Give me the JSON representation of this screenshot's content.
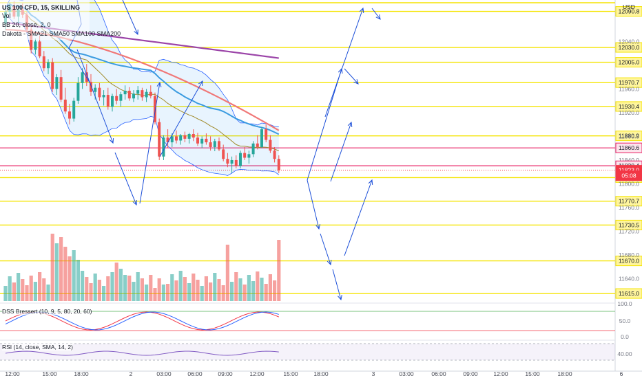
{
  "legend": {
    "symbol": "US 100 CFD, 15, SKILLING",
    "vol": "Vol",
    "bb": "BB 20, close, 2, 0",
    "sma": "Dakota - SMA21 SMA50 SMA100 SMA200"
  },
  "currency": "USD",
  "dss_label": "DSS Bressert (10, 9, 5, 80, 20, 60)",
  "rsi_label": "RSI (14, close, SMA, 14, 2)",
  "chart_data": {
    "type": "candlestick",
    "price_axis": {
      "unit": "USD",
      "ticks": [
        "12040.0",
        "11960.0",
        "11920.0",
        "11880.0",
        "11840.0",
        "11800.0",
        "11760.0",
        "11720.0",
        "11680.0",
        "11640.0"
      ],
      "range": [
        11600,
        12110
      ]
    },
    "time_axis_ticks": [
      "12:00",
      "15:00",
      "18:00",
      "2",
      "03:00",
      "06:00",
      "09:00",
      "12:00",
      "15:00",
      "18:00",
      "3",
      "03:00",
      "06:00",
      "09:00",
      "12:00",
      "15:00",
      "18:00",
      "6"
    ],
    "horizontal_levels": [
      {
        "label": "12090.8",
        "value": 12090.8
      },
      {
        "label": "12030.0",
        "value": 12030.0
      },
      {
        "label": "12005.0",
        "value": 12005.0
      },
      {
        "label": "11970.7",
        "value": 11970.7
      },
      {
        "label": "11930.4",
        "value": 11930.4
      },
      {
        "label": "11880.9",
        "value": 11880.9
      },
      {
        "label": "11810.5",
        "value": 11810.5
      },
      {
        "label": "11770.7",
        "value": 11770.7
      },
      {
        "label": "11730.5",
        "value": 11730.5
      },
      {
        "label": "11670.0",
        "value": 11670.0
      },
      {
        "label": "11615.0",
        "value": 11615.0
      }
    ],
    "price_tags": [
      {
        "label": "11860.6",
        "value": 11860.6,
        "color": "#e91e63"
      },
      {
        "label": "11830.4",
        "value": 11830.4,
        "color": "#e91e63"
      },
      {
        "label": "11823.0",
        "value": 11823.0,
        "color": "#f23645"
      },
      {
        "label": "05:08",
        "value": 11816.0,
        "color": "#f23645"
      }
    ],
    "candles": [
      [
        12070,
        12095,
        12060,
        12090
      ],
      [
        12090,
        12105,
        12085,
        12100
      ],
      [
        12100,
        12108,
        12078,
        12082
      ],
      [
        12082,
        12098,
        12070,
        12094
      ],
      [
        12094,
        12104,
        12080,
        12085
      ],
      [
        12085,
        12090,
        12055,
        12060
      ],
      [
        12060,
        12066,
        12020,
        12026
      ],
      [
        12026,
        12045,
        12018,
        12040
      ],
      [
        12040,
        12050,
        12012,
        12015
      ],
      [
        12015,
        12024,
        11990,
        11995
      ],
      [
        11995,
        12010,
        11985,
        12005
      ],
      [
        12005,
        12012,
        11955,
        11960
      ],
      [
        11960,
        11985,
        11950,
        11980
      ],
      [
        11980,
        11992,
        11938,
        11942
      ],
      [
        11942,
        11962,
        11918,
        11922
      ],
      [
        11922,
        11935,
        11900,
        11910
      ],
      [
        11910,
        11945,
        11905,
        11940
      ],
      [
        11940,
        11980,
        11935,
        11970
      ],
      [
        11970,
        11995,
        11960,
        11988
      ],
      [
        11988,
        12002,
        11965,
        11972
      ],
      [
        11972,
        11985,
        11948,
        11955
      ],
      [
        11955,
        11968,
        11942,
        11962
      ],
      [
        11962,
        11970,
        11940,
        11946
      ],
      [
        11946,
        11958,
        11932,
        11950
      ],
      [
        11950,
        11962,
        11925,
        11930
      ],
      [
        11930,
        11952,
        11922,
        11948
      ],
      [
        11948,
        11960,
        11934,
        11940
      ],
      [
        11940,
        11955,
        11930,
        11951
      ],
      [
        11951,
        11966,
        11942,
        11957
      ],
      [
        11957,
        11963,
        11940,
        11944
      ],
      [
        11944,
        11958,
        11938,
        11952
      ],
      [
        11952,
        11965,
        11942,
        11958
      ],
      [
        11958,
        11962,
        11940,
        11946
      ],
      [
        11946,
        11960,
        11938,
        11955
      ],
      [
        11955,
        11966,
        11944,
        11948
      ],
      [
        11948,
        11954,
        11900,
        11904
      ],
      [
        11904,
        11910,
        11840,
        11846
      ],
      [
        11846,
        11882,
        11840,
        11878
      ],
      [
        11878,
        11892,
        11860,
        11870
      ],
      [
        11870,
        11885,
        11862,
        11880
      ],
      [
        11880,
        11890,
        11868,
        11873
      ],
      [
        11873,
        11884,
        11866,
        11882
      ],
      [
        11882,
        11888,
        11870,
        11876
      ],
      [
        11876,
        11886,
        11868,
        11884
      ],
      [
        11884,
        11892,
        11872,
        11878
      ],
      [
        11878,
        11886,
        11864,
        11868
      ],
      [
        11868,
        11880,
        11860,
        11876
      ],
      [
        11876,
        11885,
        11866,
        11870
      ],
      [
        11870,
        11880,
        11856,
        11862
      ],
      [
        11862,
        11876,
        11855,
        11872
      ],
      [
        11872,
        11878,
        11855,
        11858
      ],
      [
        11858,
        11866,
        11838,
        11842
      ],
      [
        11842,
        11852,
        11828,
        11834
      ],
      [
        11834,
        11846,
        11818,
        11840
      ],
      [
        11840,
        11848,
        11826,
        11830
      ],
      [
        11830,
        11856,
        11826,
        11852
      ],
      [
        11852,
        11862,
        11840,
        11844
      ],
      [
        11844,
        11856,
        11834,
        11850
      ],
      [
        11850,
        11872,
        11845,
        11868
      ],
      [
        11868,
        11882,
        11858,
        11862
      ],
      [
        11862,
        11896,
        11860,
        11892
      ],
      [
        11892,
        11900,
        11870,
        11874
      ],
      [
        11874,
        11882,
        11852,
        11856
      ],
      [
        11856,
        11862,
        11836,
        11842
      ],
      [
        11842,
        11848,
        11818,
        11823
      ]
    ]
  }
}
